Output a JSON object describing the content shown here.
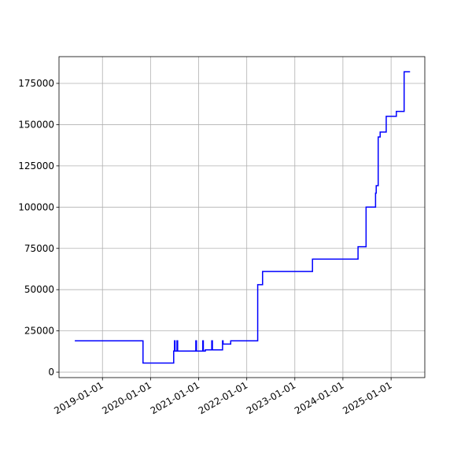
{
  "chart_data": {
    "type": "line",
    "step": "post",
    "x": [
      "2018-06-05",
      "2019-10-25",
      "2019-11-05",
      "2020-06-25",
      "2020-07-01",
      "2020-07-05",
      "2020-07-20",
      "2020-07-25",
      "2020-12-10",
      "2020-12-15",
      "2021-02-01",
      "2021-02-05",
      "2021-02-20",
      "2021-04-10",
      "2021-04-15",
      "2021-07-01",
      "2021-07-05",
      "2021-09-01",
      "2022-03-25",
      "2022-05-01",
      "2023-05-15",
      "2024-04-25",
      "2024-06-25",
      "2024-09-05",
      "2024-09-10",
      "2024-09-25",
      "2024-10-10",
      "2024-11-25",
      "2025-02-10",
      "2025-04-10",
      "2025-05-25"
    ],
    "series": [
      {
        "color": "#0000ff",
        "values": [
          19000,
          19000,
          5500,
          12800,
          19000,
          12800,
          19000,
          12800,
          19000,
          12800,
          19000,
          12800,
          13500,
          19000,
          13500,
          19000,
          17000,
          19000,
          53000,
          61000,
          68500,
          76000,
          100000,
          108500,
          113000,
          142500,
          145500,
          155000,
          158000,
          182000,
          182000
        ]
      }
    ],
    "xlim": [
      "2018-02-05",
      "2025-09-14"
    ],
    "xticks": [
      "2019-01-01",
      "2020-01-01",
      "2021-01-01",
      "2022-01-01",
      "2023-01-01",
      "2024-01-01",
      "2025-01-01"
    ],
    "ylim": [
      -3300,
      191200
    ],
    "yticks": [
      0,
      25000,
      50000,
      75000,
      100000,
      125000,
      150000,
      175000
    ],
    "grid": true
  }
}
